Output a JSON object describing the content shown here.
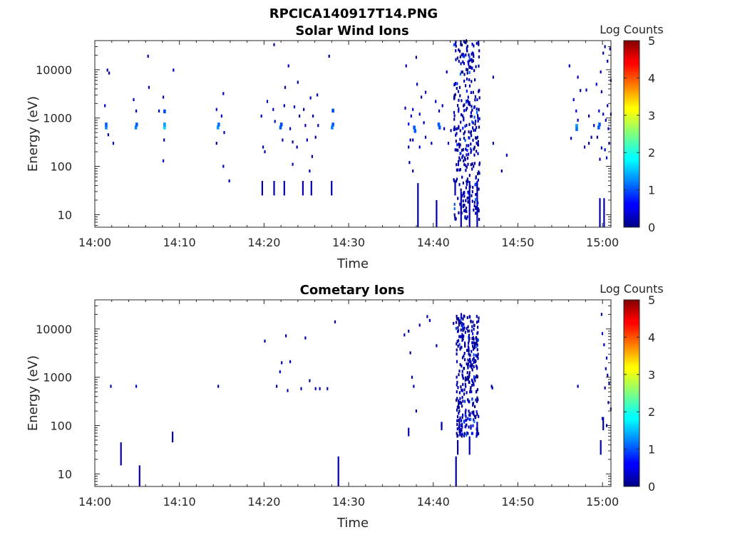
{
  "figure_title": "RPCICA140917T14.PNG",
  "chart_data": [
    {
      "type": "heatmap",
      "title": "Solar Wind Ions",
      "xlabel": "Time",
      "ylabel": "Energy (eV)",
      "x_ticks": [
        "14:00",
        "14:10",
        "14:20",
        "14:30",
        "14:40",
        "14:50",
        "15:00"
      ],
      "x_range_minutes": [
        0,
        61
      ],
      "y_scale": "log",
      "y_ticks": [
        10,
        100,
        1000,
        10000
      ],
      "y_tick_labels": [
        "10",
        "100",
        "1000",
        "10000"
      ],
      "y_range": [
        5.5,
        40000
      ],
      "colorbar": {
        "label": "Log Counts",
        "range": [
          0,
          5
        ],
        "ticks": [
          "0",
          "1",
          "2",
          "3",
          "4",
          "5"
        ]
      },
      "points": [
        [
          1.2,
          650,
          1.2
        ],
        [
          1.2,
          750,
          1.0
        ],
        [
          1.1,
          1800,
          0.3
        ],
        [
          1.4,
          9800,
          0.2
        ],
        [
          1.6,
          8500,
          0.2
        ],
        [
          1.5,
          450,
          0.2
        ],
        [
          2.1,
          300,
          0.2
        ],
        [
          4.7,
          650,
          1.2
        ],
        [
          4.8,
          750,
          1.0
        ],
        [
          4.5,
          2400,
          0.2
        ],
        [
          4.8,
          1400,
          0.2
        ],
        [
          8.1,
          650,
          1.6
        ],
        [
          8.1,
          750,
          1.3
        ],
        [
          8.1,
          1400,
          0.9
        ],
        [
          8.0,
          2700,
          0.2
        ],
        [
          8.1,
          350,
          0.2
        ],
        [
          8.0,
          130,
          0.3
        ],
        [
          6.2,
          19000,
          0.2
        ],
        [
          6.3,
          4300,
          0.2
        ],
        [
          7.5,
          1400,
          0.2
        ],
        [
          9.2,
          9800,
          0.2
        ],
        [
          14.4,
          650,
          1.3
        ],
        [
          14.5,
          750,
          1.1
        ],
        [
          14.3,
          1500,
          0.5
        ],
        [
          14.3,
          300,
          0.2
        ],
        [
          14.9,
          1100,
          0.3
        ],
        [
          15.1,
          3200,
          0.2
        ],
        [
          15.2,
          500,
          0.2
        ],
        [
          15.1,
          100,
          0.3
        ],
        [
          15.8,
          50,
          0.3
        ],
        [
          19.6,
          1100,
          0.3
        ],
        [
          19.8,
          250,
          0.2
        ],
        [
          20.0,
          200,
          0.2
        ],
        [
          20.3,
          2200,
          0.2
        ],
        [
          21.0,
          1500,
          0.3
        ],
        [
          21.1,
          33000,
          0.2
        ],
        [
          21.2,
          850,
          0.3
        ],
        [
          21.8,
          650,
          1.0
        ],
        [
          21.9,
          750,
          0.9
        ],
        [
          22.1,
          350,
          0.2
        ],
        [
          22.3,
          1800,
          0.2
        ],
        [
          22.4,
          4300,
          0.2
        ],
        [
          22.8,
          12000,
          0.2
        ],
        [
          23.0,
          600,
          0.2
        ],
        [
          23.3,
          320,
          0.2
        ],
        [
          23.8,
          250,
          0.2
        ],
        [
          23.5,
          1700,
          0.2
        ],
        [
          23.9,
          5500,
          0.2
        ],
        [
          24.1,
          1100,
          0.2
        ],
        [
          24.6,
          1500,
          0.2
        ],
        [
          24.8,
          700,
          0.3
        ],
        [
          25.0,
          350,
          0.2
        ],
        [
          25.4,
          2600,
          0.2
        ],
        [
          25.7,
          1100,
          0.2
        ],
        [
          26.0,
          400,
          0.2
        ],
        [
          26.2,
          3000,
          0.2
        ],
        [
          26.3,
          700,
          0.2
        ],
        [
          27.6,
          19000,
          0.2
        ],
        [
          28.0,
          1450,
          0.9
        ],
        [
          27.9,
          650,
          1.2
        ],
        [
          28.0,
          750,
          1.0
        ],
        [
          23.3,
          110,
          0.3
        ],
        [
          25.3,
          80,
          0.3
        ],
        [
          25.6,
          160,
          0.2
        ],
        [
          36.6,
          1600,
          0.3
        ],
        [
          36.7,
          12000,
          0.2
        ],
        [
          37.0,
          750,
          0.5
        ],
        [
          37.3,
          1100,
          0.3
        ],
        [
          37.6,
          650,
          1.0
        ],
        [
          37.7,
          550,
          1.0
        ],
        [
          37.5,
          1500,
          0.4
        ],
        [
          38.0,
          5000,
          0.2
        ],
        [
          37.9,
          18000,
          0.2
        ],
        [
          38.3,
          1200,
          0.3
        ],
        [
          38.5,
          2700,
          0.2
        ],
        [
          38.8,
          800,
          0.2
        ],
        [
          39.0,
          3400,
          0.2
        ],
        [
          37.2,
          350,
          0.2
        ],
        [
          37.5,
          350,
          0.2
        ],
        [
          37.0,
          250,
          0.2
        ],
        [
          37.1,
          120,
          0.2
        ],
        [
          37.5,
          80,
          0.2
        ],
        [
          38.3,
          250,
          0.2
        ],
        [
          39.7,
          300,
          0.2
        ],
        [
          39.0,
          400,
          0.2
        ],
        [
          40.5,
          750,
          1.0
        ],
        [
          40.6,
          650,
          1.0
        ],
        [
          40.6,
          1400,
          0.4
        ],
        [
          40.2,
          2200,
          0.2
        ],
        [
          41.0,
          1800,
          0.2
        ],
        [
          41.2,
          600,
          0.2
        ],
        [
          41.5,
          9000,
          0.2
        ],
        [
          42.0,
          550,
          0.2
        ],
        [
          41.7,
          300,
          0.2
        ],
        [
          47.0,
          300,
          0.2
        ],
        [
          47.0,
          7000,
          0.2
        ],
        [
          48.6,
          170,
          0.3
        ],
        [
          48.0,
          80,
          0.2
        ],
        [
          56.2,
          380,
          0.2
        ],
        [
          56.0,
          12000,
          0.2
        ],
        [
          56.5,
          2400,
          0.2
        ],
        [
          56.8,
          1400,
          0.5
        ],
        [
          56.8,
          700,
          1.3
        ],
        [
          56.8,
          600,
          1.1
        ],
        [
          57.0,
          7000,
          0.2
        ],
        [
          57.3,
          3700,
          0.2
        ],
        [
          57.0,
          900,
          0.2
        ],
        [
          57.8,
          250,
          0.2
        ],
        [
          58.0,
          3800,
          0.2
        ],
        [
          58.3,
          300,
          0.2
        ],
        [
          58.3,
          1100,
          0.2
        ],
        [
          58.6,
          400,
          0.2
        ],
        [
          58.9,
          700,
          0.2
        ],
        [
          59.2,
          5000,
          0.2
        ],
        [
          59.3,
          400,
          0.2
        ],
        [
          59.4,
          650,
          1.0
        ],
        [
          59.5,
          750,
          1.0
        ],
        [
          59.5,
          1400,
          0.5
        ],
        [
          60.0,
          1200,
          0.4
        ],
        [
          60.3,
          900,
          0.3
        ],
        [
          60.5,
          1800,
          0.3
        ],
        [
          60.6,
          600,
          0.4
        ],
        [
          59.8,
          240,
          0.5
        ],
        [
          60.2,
          220,
          0.3
        ],
        [
          60.4,
          150,
          0.2
        ],
        [
          59.7,
          9000,
          0.2
        ],
        [
          60.0,
          22000,
          0.2
        ],
        [
          60.5,
          15000,
          0.2
        ],
        [
          60.8,
          27000,
          0.2
        ],
        [
          60.9,
          6000,
          0.2
        ],
        [
          59.8,
          3500,
          0.2
        ],
        [
          60.2,
          30000,
          0.2
        ],
        [
          59.6,
          140,
          0.2
        ],
        [
          60.7,
          300,
          0.3
        ],
        [
          60.9,
          1200,
          0.2
        ]
      ],
      "spans": [
        [
          19.7,
          25,
          50,
          0.2
        ],
        [
          21.1,
          25,
          50,
          0.2
        ],
        [
          22.3,
          25,
          50,
          0.2
        ],
        [
          24.5,
          25,
          50,
          0.2
        ],
        [
          25.5,
          25,
          50,
          0.2
        ],
        [
          27.9,
          25,
          50,
          0.2
        ],
        [
          38.1,
          5.5,
          45,
          0.2
        ],
        [
          40.3,
          5.5,
          20,
          0.2
        ],
        [
          42.5,
          25,
          50,
          0.2
        ],
        [
          43.2,
          5.5,
          30,
          0.2
        ],
        [
          44.2,
          5.5,
          50,
          0.2
        ],
        [
          45.1,
          5.5,
          50,
          0.2
        ],
        [
          59.6,
          5.5,
          22,
          0.2
        ],
        [
          60.1,
          5.5,
          22,
          0.2
        ]
      ],
      "dense_region": {
        "x_from": 42.3,
        "x_to": 45.4,
        "y_from": 8,
        "y_to": 40000,
        "seed": 11
      }
    },
    {
      "type": "heatmap",
      "title": "Cometary Ions",
      "xlabel": "Time",
      "ylabel": "Energy (eV)",
      "x_ticks": [
        "14:00",
        "14:10",
        "14:20",
        "14:30",
        "14:40",
        "14:50",
        "15:00"
      ],
      "x_range_minutes": [
        0,
        61
      ],
      "y_scale": "log",
      "y_ticks": [
        10,
        100,
        1000,
        10000
      ],
      "y_tick_labels": [
        "10",
        "100",
        "1000",
        "10000"
      ],
      "y_range": [
        5.5,
        40000
      ],
      "colorbar": {
        "label": "Log Counts",
        "range": [
          0,
          5
        ],
        "ticks": [
          "0",
          "1",
          "2",
          "3",
          "4",
          "5"
        ]
      },
      "points": [
        [
          1.8,
          650,
          0.2
        ],
        [
          4.8,
          650,
          0.3
        ],
        [
          14.5,
          650,
          0.2
        ],
        [
          20.0,
          5600,
          0.2
        ],
        [
          21.4,
          650,
          0.2
        ],
        [
          21.8,
          1300,
          0.2
        ],
        [
          22.0,
          2000,
          0.2
        ],
        [
          22.7,
          530,
          0.2
        ],
        [
          22.5,
          7200,
          0.2
        ],
        [
          23.0,
          2100,
          0.2
        ],
        [
          24.3,
          580,
          0.2
        ],
        [
          24.8,
          6500,
          0.2
        ],
        [
          25.3,
          850,
          0.2
        ],
        [
          26.0,
          580,
          0.2
        ],
        [
          26.5,
          580,
          0.2
        ],
        [
          27.4,
          580,
          0.2
        ],
        [
          28.3,
          14000,
          0.2
        ],
        [
          36.5,
          7500,
          0.2
        ],
        [
          37.0,
          9000,
          0.2
        ],
        [
          37.2,
          3200,
          0.2
        ],
        [
          37.4,
          1000,
          0.2
        ],
        [
          37.6,
          650,
          0.2
        ],
        [
          37.9,
          200,
          0.2
        ],
        [
          38.3,
          12000,
          0.2
        ],
        [
          39.2,
          18000,
          0.2
        ],
        [
          39.5,
          15000,
          0.2
        ],
        [
          40.3,
          4500,
          0.2
        ],
        [
          40.9,
          100,
          0.2
        ],
        [
          42.3,
          13000,
          0.2
        ],
        [
          46.8,
          650,
          0.2
        ],
        [
          46.9,
          600,
          0.2
        ],
        [
          57.0,
          650,
          0.2
        ],
        [
          59.8,
          20000,
          0.2
        ],
        [
          59.9,
          8000,
          0.2
        ],
        [
          60.1,
          4700,
          0.2
        ],
        [
          60.4,
          2500,
          0.2
        ],
        [
          60.3,
          1500,
          0.2
        ],
        [
          60.5,
          1100,
          0.2
        ],
        [
          60.7,
          750,
          0.2
        ],
        [
          60.2,
          600,
          0.2
        ],
        [
          60.6,
          300,
          0.2
        ],
        [
          60.9,
          220,
          0.2
        ],
        [
          59.9,
          140,
          0.2
        ],
        [
          60.4,
          100,
          0.2
        ]
      ],
      "spans": [
        [
          3.0,
          15,
          45,
          0.2
        ],
        [
          5.2,
          5.5,
          15,
          0.2
        ],
        [
          9.1,
          45,
          75,
          0.2
        ],
        [
          28.7,
          5.5,
          23,
          0.2
        ],
        [
          37.0,
          60,
          90,
          0.2
        ],
        [
          40.9,
          80,
          120,
          0.2
        ],
        [
          42.6,
          5.5,
          23,
          0.2
        ],
        [
          42.8,
          25,
          50,
          0.2
        ],
        [
          43.0,
          70,
          140,
          0.2
        ],
        [
          44.2,
          25,
          60,
          0.2
        ],
        [
          45.1,
          60,
          120,
          0.2
        ],
        [
          59.7,
          25,
          50,
          0.2
        ],
        [
          60.0,
          80,
          150,
          0.2
        ]
      ],
      "dense_region": {
        "x_from": 42.6,
        "x_to": 45.3,
        "y_from": 60,
        "y_to": 20000,
        "seed": 29
      }
    }
  ]
}
